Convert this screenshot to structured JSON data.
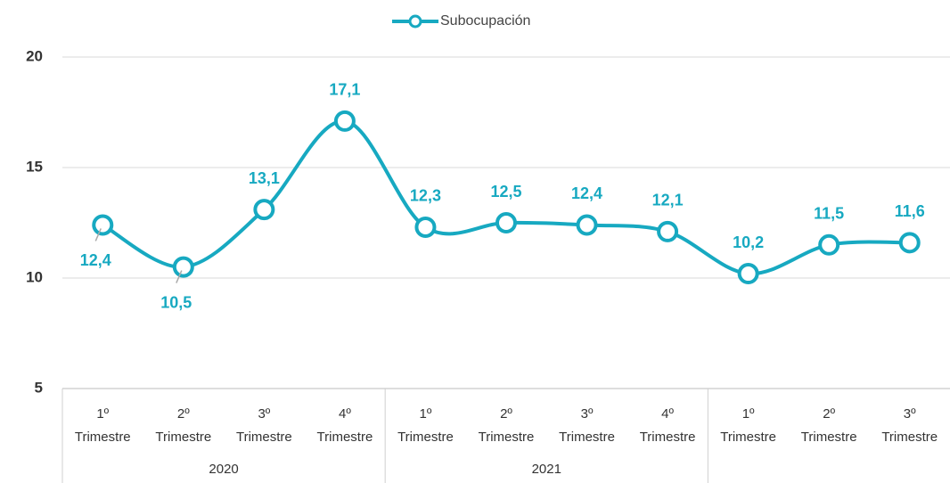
{
  "chart_data": {
    "type": "line",
    "categories": [
      "1º Trimestre",
      "2º Trimestre",
      "3º Trimestre",
      "4º Trimestre",
      "1º Trimestre",
      "2º Trimestre",
      "3º Trimestre",
      "4º Trimestre",
      "1º Trimestre",
      "2º Trimestre",
      "3º Trimestre"
    ],
    "groups": [
      {
        "name": "2020",
        "count": 4
      },
      {
        "name": "2021",
        "count": 4
      },
      {
        "name": null,
        "count": 3
      }
    ],
    "series": [
      {
        "name": "Subocupación",
        "color": "#17a9c1",
        "values": [
          12.4,
          10.5,
          13.1,
          17.1,
          12.3,
          12.5,
          12.4,
          12.1,
          10.2,
          11.5,
          11.6
        ],
        "value_labels": [
          "12,4",
          "10,5",
          "13,1",
          "17,1",
          "12,3",
          "12,5",
          "12,4",
          "12,1",
          "10,2",
          "11,5",
          "11,6"
        ]
      }
    ],
    "ylim": [
      5,
      20
    ],
    "yticks": [
      5,
      10,
      15,
      20
    ],
    "grid": true,
    "smooth": true,
    "legend": "top"
  }
}
